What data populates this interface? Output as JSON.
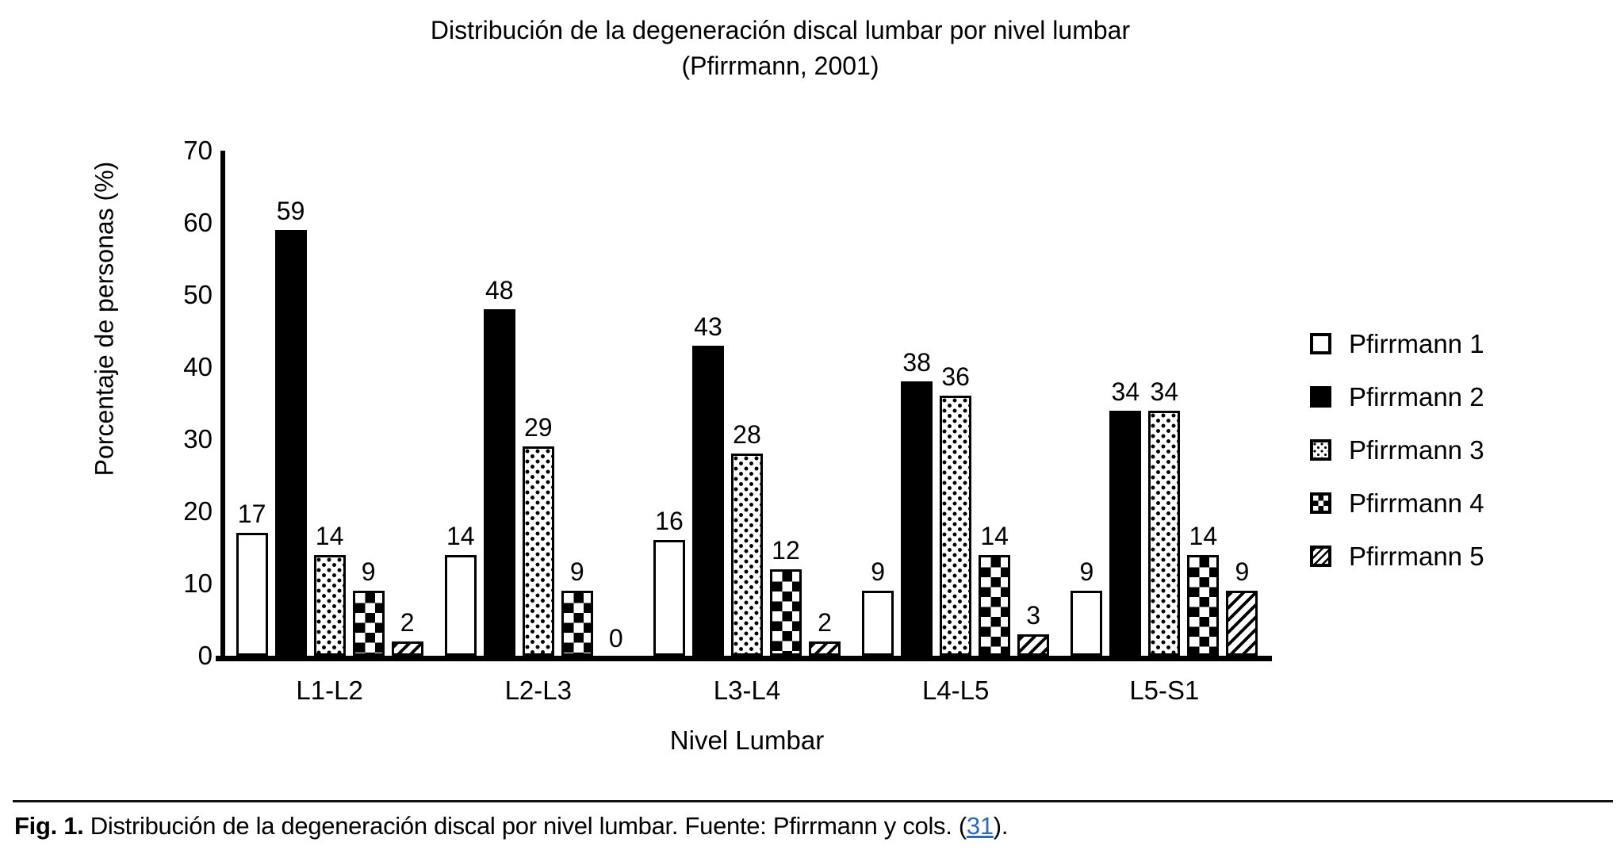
{
  "chart_data": {
    "type": "bar",
    "title": "Distribución de la degeneración discal lumbar por nivel lumbar",
    "subtitle": "(Pfirrmann, 2001)",
    "xlabel": "Nivel Lumbar",
    "ylabel": "Porcentaje de personas (%)",
    "categories": [
      "L1-L2",
      "L2-L3",
      "L3-L4",
      "L4-L5",
      "L5-S1"
    ],
    "series": [
      {
        "name": "Pfirrmann 1",
        "pattern": "white",
        "values": [
          17,
          14,
          16,
          9,
          9
        ]
      },
      {
        "name": "Pfirrmann 2",
        "pattern": "black",
        "values": [
          59,
          48,
          43,
          38,
          34
        ]
      },
      {
        "name": "Pfirrmann 3",
        "pattern": "dots",
        "values": [
          14,
          29,
          28,
          36,
          34
        ]
      },
      {
        "name": "Pfirrmann 4",
        "pattern": "checker",
        "values": [
          9,
          9,
          12,
          14,
          14
        ]
      },
      {
        "name": "Pfirrmann 5",
        "pattern": "diagonal",
        "values": [
          2,
          0,
          2,
          3,
          9
        ]
      }
    ],
    "ylim": [
      0,
      70
    ],
    "yticks": [
      0,
      10,
      20,
      30,
      40,
      50,
      60,
      70
    ],
    "grid": false,
    "legend_position": "right",
    "value_labels": true,
    "bar_outline_color": "#000000",
    "background_color": "#ffffff"
  },
  "caption": {
    "label": "Fig. 1.",
    "body": " Distribución de la degeneración discal por nivel lumbar. Fuente: Pfirrmann y cols. (",
    "link_text": "31",
    "after_link": ").",
    "link_color": "#2f6bb0"
  }
}
